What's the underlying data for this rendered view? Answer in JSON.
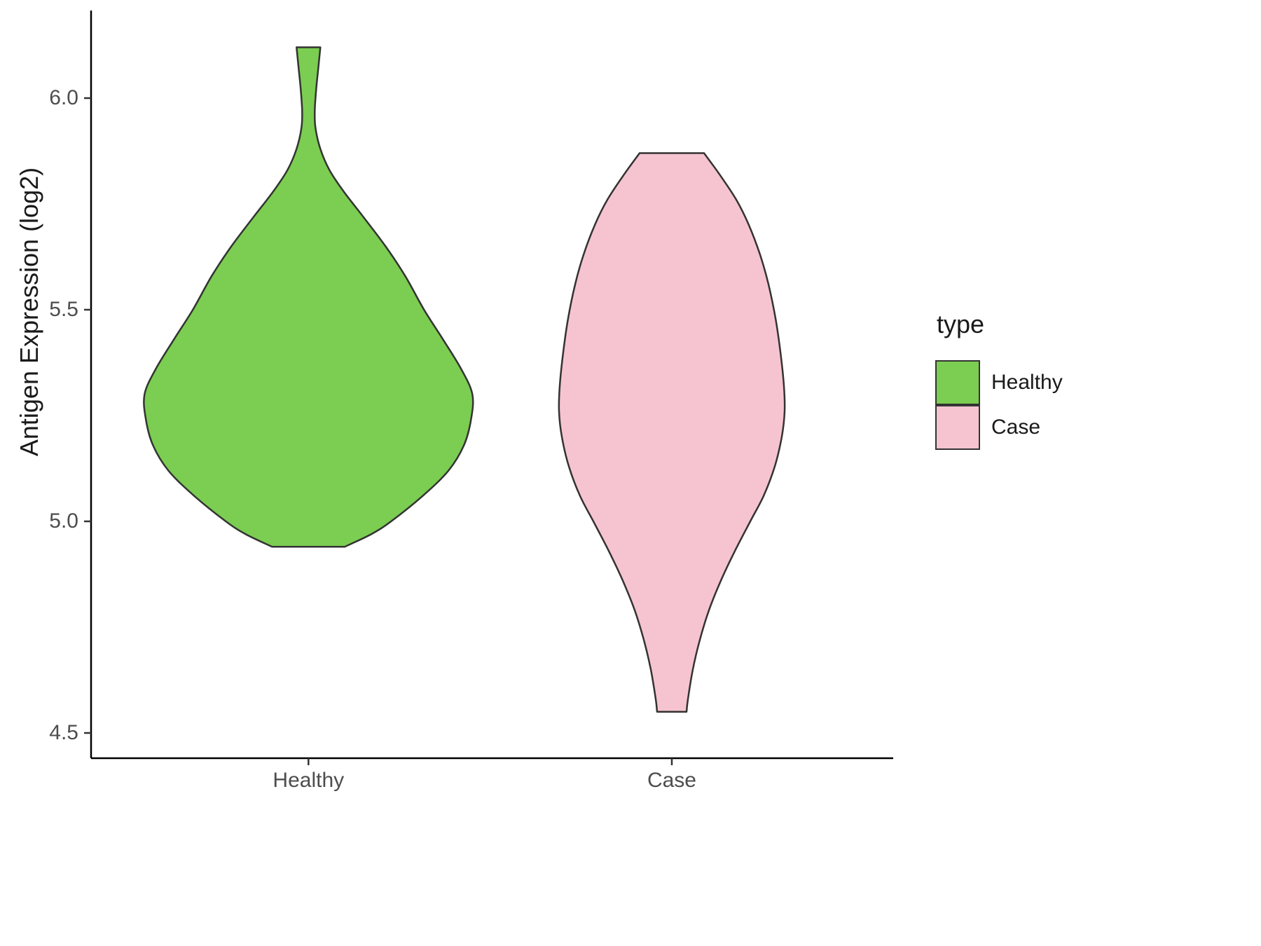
{
  "chart_data": {
    "type": "violin",
    "title": "",
    "xlabel": "",
    "ylabel": "Antigen Expression (log2)",
    "grid": false,
    "legend_position": "right",
    "legend": {
      "title": "type",
      "entries": [
        {
          "label": "Healthy",
          "color": "#7BCE51"
        },
        {
          "label": "Case",
          "color": "#F6C4D0"
        }
      ]
    },
    "ylim": [
      4.45,
      6.21
    ],
    "y_ticks": [
      {
        "value": 6.0,
        "label": "6.0"
      },
      {
        "value": 5.5,
        "label": "5.5"
      },
      {
        "value": 5.0,
        "label": "5.0"
      },
      {
        "value": 4.5,
        "label": "4.5"
      }
    ],
    "categories": [
      "Healthy",
      "Case"
    ],
    "outline_color": "#333333",
    "series": [
      {
        "name": "Healthy",
        "fill": "#7BCE51",
        "y_range": [
          4.94,
          6.12
        ],
        "profile": [
          [
            6.12,
            17
          ],
          [
            6.07,
            14
          ],
          [
            6.02,
            11
          ],
          [
            5.97,
            9
          ],
          [
            5.93,
            10
          ],
          [
            5.88,
            17
          ],
          [
            5.83,
            30
          ],
          [
            5.78,
            50
          ],
          [
            5.72,
            78
          ],
          [
            5.65,
            110
          ],
          [
            5.58,
            138
          ],
          [
            5.5,
            165
          ],
          [
            5.43,
            192
          ],
          [
            5.36,
            218
          ],
          [
            5.3,
            234
          ],
          [
            5.24,
            232
          ],
          [
            5.18,
            222
          ],
          [
            5.12,
            200
          ],
          [
            5.06,
            163
          ],
          [
            5.0,
            118
          ],
          [
            4.97,
            90
          ],
          [
            4.94,
            52
          ]
        ]
      },
      {
        "name": "Case",
        "fill": "#F6C4D0",
        "y_range": [
          4.55,
          5.87
        ],
        "profile": [
          [
            5.87,
            46
          ],
          [
            5.82,
            68
          ],
          [
            5.76,
            92
          ],
          [
            5.7,
            110
          ],
          [
            5.63,
            126
          ],
          [
            5.56,
            138
          ],
          [
            5.48,
            148
          ],
          [
            5.4,
            155
          ],
          [
            5.32,
            160
          ],
          [
            5.26,
            161
          ],
          [
            5.2,
            157
          ],
          [
            5.13,
            147
          ],
          [
            5.06,
            131
          ],
          [
            5.0,
            112
          ],
          [
            4.93,
            90
          ],
          [
            4.86,
            70
          ],
          [
            4.79,
            53
          ],
          [
            4.72,
            40
          ],
          [
            4.65,
            30
          ],
          [
            4.58,
            23
          ],
          [
            4.55,
            21
          ]
        ]
      }
    ]
  }
}
